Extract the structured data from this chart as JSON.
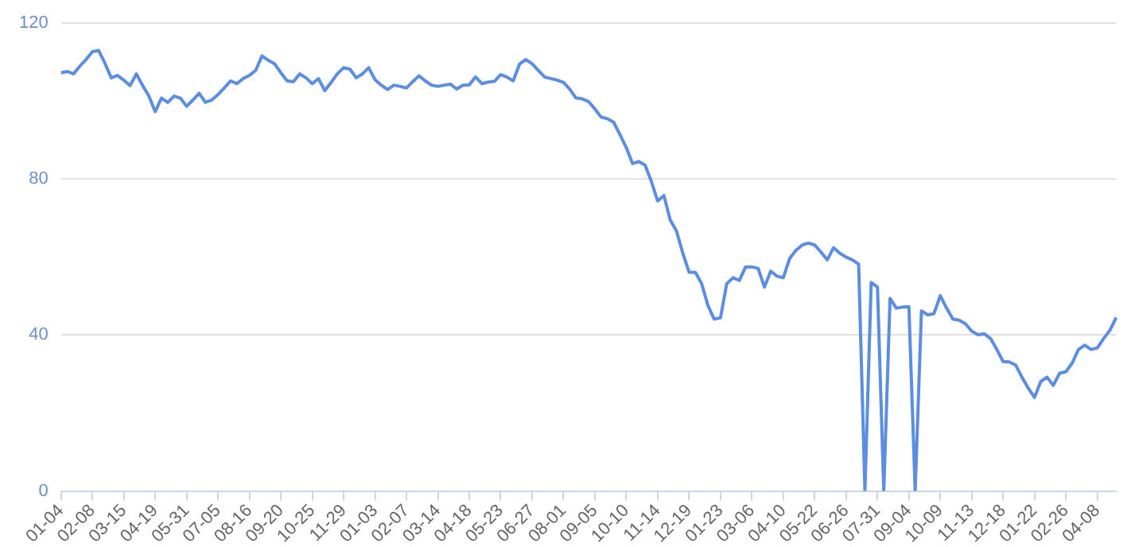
{
  "chart_data": {
    "type": "line",
    "categories": [
      "01-04",
      null,
      null,
      null,
      null,
      "02-08",
      null,
      null,
      null,
      null,
      "03-15",
      null,
      null,
      null,
      null,
      "04-19",
      null,
      null,
      null,
      null,
      "05-31",
      null,
      null,
      null,
      null,
      "07-05",
      null,
      null,
      null,
      null,
      "08-16",
      null,
      null,
      null,
      null,
      "09-20",
      null,
      null,
      null,
      null,
      "10-25",
      null,
      null,
      null,
      null,
      "11-29",
      null,
      null,
      null,
      null,
      "01-03",
      null,
      null,
      null,
      null,
      "02-07",
      null,
      null,
      null,
      null,
      "03-14",
      null,
      null,
      null,
      null,
      "04-18",
      null,
      null,
      null,
      null,
      "05-23",
      null,
      null,
      null,
      null,
      "06-27",
      null,
      null,
      null,
      null,
      "08-01",
      null,
      null,
      null,
      null,
      "09-05",
      null,
      null,
      null,
      null,
      "10-10",
      null,
      null,
      null,
      null,
      "11-14",
      null,
      null,
      null,
      null,
      "12-19",
      null,
      null,
      null,
      null,
      "01-23",
      null,
      null,
      null,
      null,
      "03-06",
      null,
      null,
      null,
      null,
      "04-10",
      null,
      null,
      null,
      null,
      "05-22",
      null,
      null,
      null,
      null,
      "06-26",
      null,
      null,
      null,
      null,
      "07-31",
      null,
      null,
      null,
      null,
      "09-04",
      null,
      null,
      null,
      null,
      "10-09",
      null,
      null,
      null,
      null,
      "11-13",
      null,
      null,
      null,
      null,
      "12-18",
      null,
      null,
      null,
      null,
      "01-22",
      null,
      null,
      null,
      null,
      "02-26",
      null,
      null,
      null,
      null,
      "04-08",
      null,
      null,
      null
    ],
    "values": [
      107.3,
      107.6,
      107,
      109,
      110.7,
      112.7,
      113,
      109.7,
      106,
      106.6,
      105.4,
      104,
      107,
      104,
      101.3,
      97.3,
      100.8,
      99.7,
      101.3,
      100.8,
      98.7,
      100.3,
      102,
      99.7,
      100.3,
      101.7,
      103.4,
      105.2,
      104.5,
      105.8,
      106.6,
      107.9,
      111.6,
      110.5,
      109.6,
      107.3,
      105.2,
      105,
      107,
      106,
      104.5,
      105.8,
      102.7,
      104.8,
      107,
      108.6,
      108.2,
      106,
      107,
      108.6,
      105.5,
      104.1,
      103,
      104.1,
      103.8,
      103.4,
      105,
      106.5,
      105.2,
      104.1,
      103.8,
      104.1,
      104.4,
      103.1,
      104.1,
      104.2,
      106.2,
      104.5,
      104.9,
      105.1,
      106.8,
      106.2,
      105.2,
      109.5,
      110.7,
      109.6,
      107.9,
      106.2,
      105.8,
      105.4,
      104.8,
      103.1,
      100.8,
      100.6,
      99.9,
      98,
      95.9,
      95.5,
      94.6,
      91.4,
      88.1,
      84,
      84.5,
      83.6,
      79.4,
      74.4,
      75.8,
      69.5,
      66.7,
      61,
      56.1,
      56.1,
      53.2,
      47.6,
      44.1,
      44.4,
      53.2,
      54.7,
      54,
      57.5,
      57.5,
      57.1,
      52.3,
      56.4,
      55.1,
      54.7,
      59.6,
      61.7,
      63.1,
      63.6,
      63.1,
      61.3,
      59.3,
      62.4,
      61,
      60,
      59.3,
      58.2,
      0,
      53.5,
      52.3,
      0,
      49.4,
      46.9,
      47.2,
      47.3,
      0,
      46.2,
      45.2,
      45.5,
      50.1,
      46.9,
      44.1,
      43.8,
      42.9,
      41,
      40.1,
      40.3,
      39.1,
      36.3,
      33.2,
      33.1,
      32.3,
      29.2,
      26.4,
      24,
      28.1,
      29.2,
      27.1,
      30.2,
      30.6,
      32.8,
      36.3,
      37.4,
      36.3,
      36.7,
      39.1,
      41.2,
      44.5
    ],
    "color": "#5b8ee0",
    "ylim": [
      0,
      120
    ],
    "yticks": [
      0,
      40,
      80,
      120
    ],
    "grid": "y",
    "marker": "none",
    "legend": false
  }
}
